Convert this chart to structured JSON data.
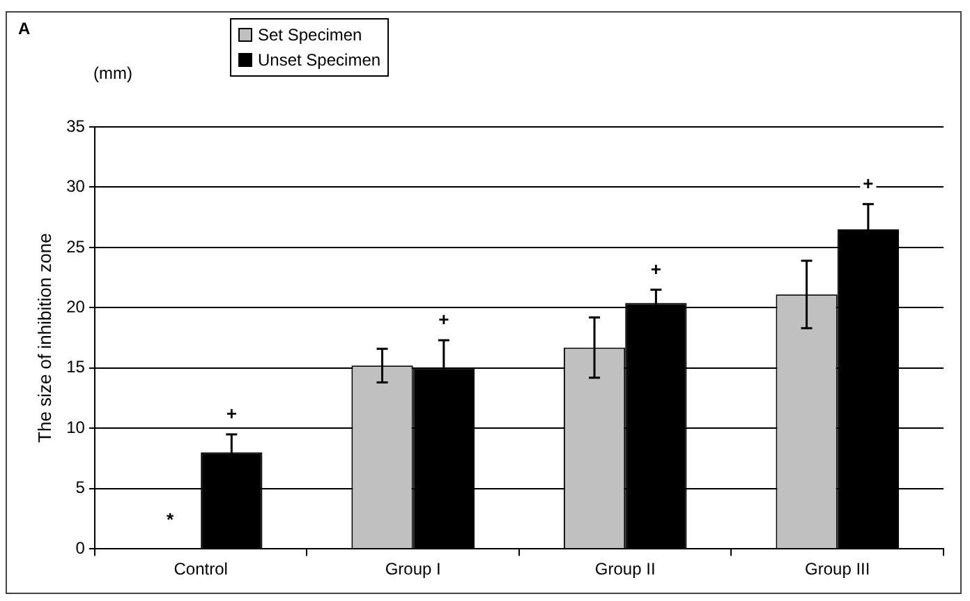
{
  "chart_data": {
    "type": "bar",
    "ylabel": "The size of inhibition zone",
    "categories": [
      "Control",
      "Group I",
      "Group II",
      "Group III"
    ],
    "series": [
      {
        "name": "Set Specimen",
        "color": "#c0c0c0",
        "values": [
          null,
          15.2,
          16.7,
          21.1
        ],
        "errors": [
          null,
          1.4,
          2.5,
          2.8
        ]
      },
      {
        "name": "Unset Specimen",
        "color": "#000000",
        "values": [
          8.0,
          15.0,
          20.4,
          26.5
        ],
        "errors": [
          1.5,
          2.3,
          1.1,
          2.1
        ]
      }
    ],
    "ylim": [
      0,
      35
    ],
    "yticks": [
      0,
      5,
      10,
      15,
      20,
      25,
      30,
      35
    ],
    "grid": "y",
    "legend": "top left",
    "annotations": [
      "A",
      "(mm)",
      "*",
      "+",
      "+",
      "+",
      "+"
    ]
  }
}
